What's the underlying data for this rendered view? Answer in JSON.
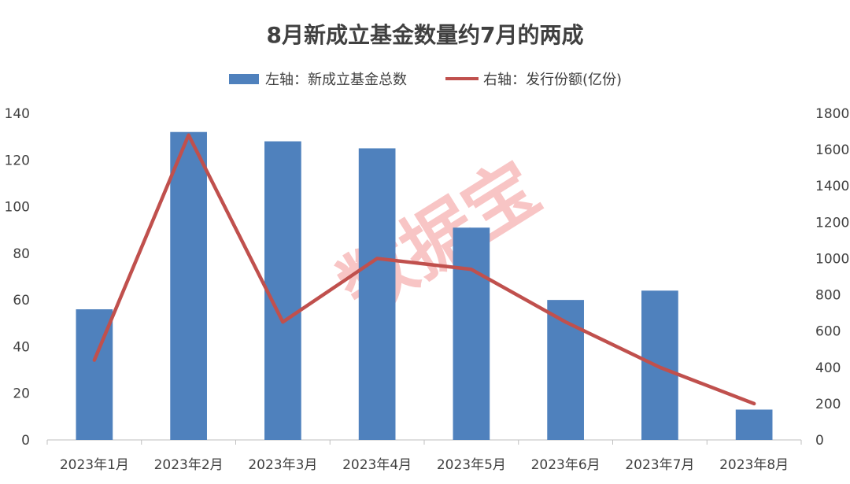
{
  "chart_data": {
    "type": "bar",
    "title": "8月新成立基金数量约7月的两成",
    "categories": [
      "2023年1月",
      "2023年2月",
      "2023年3月",
      "2023年4月",
      "2023年5月",
      "2023年6月",
      "2023年7月",
      "2023年8月"
    ],
    "series": [
      {
        "name": "左轴：新成立基金总数",
        "type": "bar",
        "axis": "left",
        "color": "#4f81bd",
        "values": [
          56,
          132,
          128,
          125,
          91,
          60,
          64,
          13
        ]
      },
      {
        "name": "右轴：发行份额(亿份)",
        "type": "line",
        "axis": "right",
        "color": "#c0504d",
        "values": [
          440,
          1680,
          650,
          1000,
          940,
          650,
          400,
          200
        ]
      }
    ],
    "ylim_left": [
      0,
      140
    ],
    "yticks_left": [
      "0",
      "20",
      "40",
      "60",
      "80",
      "100",
      "120",
      "140"
    ],
    "ylim_right": [
      0,
      1800
    ],
    "yticks_right": [
      "0",
      "200",
      "400",
      "600",
      "800",
      "1000",
      "1200",
      "1400",
      "1600",
      "1800"
    ],
    "legend_position": "top-center",
    "grid": false
  },
  "watermark": "数据宝"
}
